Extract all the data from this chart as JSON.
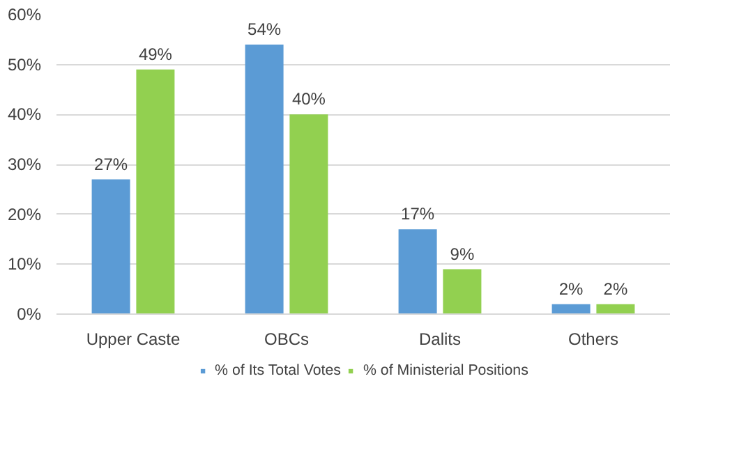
{
  "chart_data": {
    "type": "bar",
    "categories": [
      "Upper Caste",
      "OBCs",
      "Dalits",
      "Others"
    ],
    "series": [
      {
        "name": "% of Its Total Votes",
        "color": "#5b9bd5",
        "values": [
          27,
          54,
          17,
          2
        ],
        "value_labels": [
          "27%",
          "54%",
          "17%",
          "2%"
        ]
      },
      {
        "name": "% of Ministerial Positions",
        "color": "#92d050",
        "values": [
          49,
          40,
          9,
          2
        ],
        "value_labels": [
          "49%",
          "40%",
          "9%",
          "2%"
        ]
      }
    ],
    "ylim": [
      0,
      60
    ],
    "yticks": [
      {
        "value": 0,
        "label": "0%"
      },
      {
        "value": 10,
        "label": "10%"
      },
      {
        "value": 20,
        "label": "20%"
      },
      {
        "value": 30,
        "label": "30%"
      },
      {
        "value": 40,
        "label": "40%"
      },
      {
        "value": 50,
        "label": "50%"
      },
      {
        "value": 60,
        "label": "60%"
      }
    ],
    "grid": "y",
    "legend": "bottom"
  }
}
